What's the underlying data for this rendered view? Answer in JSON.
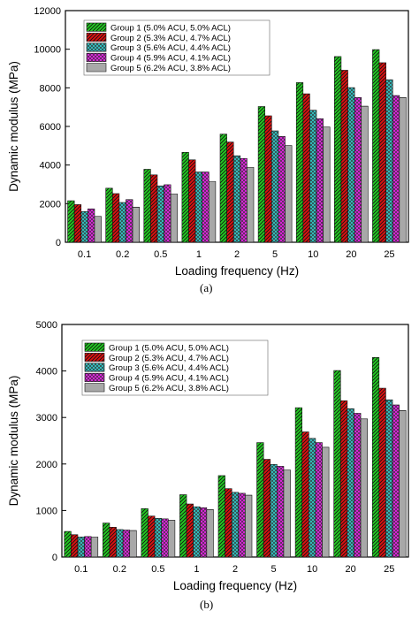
{
  "figure": {
    "panel_labels": [
      "(a)",
      "(b)"
    ]
  },
  "legend_entries": [
    "Group 1 (5.0% ACU, 5.0% ACL)",
    "Group 2 (5.3% ACU, 4.7% ACL)",
    "Group 3 (5.6% ACU, 4.4% ACL)",
    "Group 4 (5.9% ACU, 4.1% ACL)",
    "Group 5 (6.2% ACU, 3.8% ACL)"
  ],
  "series_styles": [
    {
      "fill": "#22cc22",
      "pattern": "diag"
    },
    {
      "fill": "#dd1111",
      "pattern": "diag"
    },
    {
      "fill": "#33cccc",
      "pattern": "cross"
    },
    {
      "fill": "#ee22ee",
      "pattern": "cross"
    },
    {
      "fill": "#d0d0d0",
      "pattern": "hlines"
    }
  ],
  "chart_data": [
    {
      "type": "bar",
      "xlabel": "Loading frequency (Hz)",
      "ylabel": "Dynamic modulus (MPa)",
      "ylim": [
        0,
        12000
      ],
      "yticks": [
        0,
        2000,
        4000,
        6000,
        8000,
        10000,
        12000
      ],
      "categories": [
        "0.1",
        "0.2",
        "0.5",
        "1",
        "2",
        "5",
        "10",
        "20",
        "25"
      ],
      "legend_position": "top-left",
      "series": [
        {
          "name": "Group 1 (5.0% ACU, 5.0% ACL)",
          "values": [
            2150,
            2800,
            3780,
            4660,
            5600,
            7030,
            8270,
            9620,
            9980
          ]
        },
        {
          "name": "Group 2 (5.3% ACU, 4.7% ACL)",
          "values": [
            1950,
            2520,
            3490,
            4270,
            5190,
            6550,
            7690,
            8910,
            9300
          ]
        },
        {
          "name": "Group 3 (5.6% ACU, 4.4% ACL)",
          "values": [
            1590,
            2060,
            2920,
            3640,
            4480,
            5770,
            6840,
            8010,
            8420
          ]
        },
        {
          "name": "Group 4 (5.9% ACU, 4.1% ACL)",
          "values": [
            1730,
            2210,
            2980,
            3640,
            4340,
            5480,
            6400,
            7500,
            7600
          ]
        },
        {
          "name": "Group 5 (6.2% ACU, 3.8% ACL)",
          "values": [
            1340,
            1820,
            2500,
            3150,
            3880,
            5010,
            5970,
            7050,
            7500
          ]
        }
      ]
    },
    {
      "type": "bar",
      "xlabel": "Loading frequency (Hz)",
      "ylabel": "Dynamic modulus (MPa)",
      "ylim": [
        0,
        5000
      ],
      "yticks": [
        0,
        1000,
        2000,
        3000,
        4000,
        5000
      ],
      "categories": [
        "0.1",
        "0.2",
        "0.5",
        "1",
        "2",
        "5",
        "10",
        "20",
        "25"
      ],
      "legend_position": "top-left",
      "series": [
        {
          "name": "Group 1 (5.0% ACU, 5.0% ACL)",
          "values": [
            550,
            730,
            1040,
            1340,
            1750,
            2460,
            3210,
            4010,
            4290
          ]
        },
        {
          "name": "Group 2 (5.3% ACU, 4.7% ACL)",
          "values": [
            480,
            640,
            880,
            1140,
            1470,
            2100,
            2690,
            3360,
            3630
          ]
        },
        {
          "name": "Group 3 (5.6% ACU, 4.4% ACL)",
          "values": [
            430,
            590,
            830,
            1080,
            1390,
            1990,
            2550,
            3190,
            3380
          ]
        },
        {
          "name": "Group 4 (5.9% ACU, 4.1% ACL)",
          "values": [
            440,
            580,
            820,
            1060,
            1370,
            1950,
            2460,
            3090,
            3270
          ]
        },
        {
          "name": "Group 5 (6.2% ACU, 3.8% ACL)",
          "values": [
            430,
            570,
            790,
            1020,
            1330,
            1870,
            2360,
            2970,
            3150
          ]
        }
      ]
    }
  ]
}
